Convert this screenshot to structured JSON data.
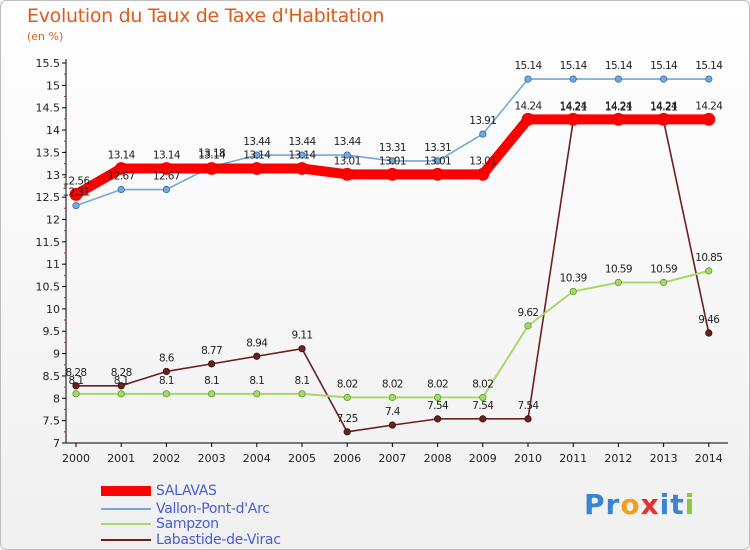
{
  "chart_data": {
    "type": "line",
    "title": "Evolution du Taux de Taxe d'Habitation",
    "unit_label": "(en %)",
    "x": [
      "2000",
      "2001",
      "2002",
      "2003",
      "2004",
      "2005",
      "2006",
      "2007",
      "2008",
      "2009",
      "2010",
      "2011",
      "2012",
      "2013",
      "2014"
    ],
    "ylim": [
      7,
      15.5
    ],
    "yticks": [
      "7",
      "7.5",
      "8",
      "8.5",
      "9",
      "9.5",
      "10",
      "10.5",
      "11",
      "11.5",
      "12",
      "12.5",
      "13",
      "13.5",
      "14",
      "14.5",
      "15",
      "15.5"
    ],
    "grid": false,
    "legend_placement": "bottom-left",
    "series": [
      {
        "name": "SALAVAS",
        "color": "#ff0000",
        "values": [
          12.56,
          13.14,
          13.14,
          13.14,
          13.14,
          13.14,
          13.01,
          13.01,
          13.01,
          13.01,
          14.24,
          14.24,
          14.24,
          14.24,
          14.24
        ],
        "labels": [
          "12.56",
          "13.14",
          "13.14",
          "13.14",
          "13.14",
          "13.14",
          "13.01",
          "13.01",
          "13.01",
          "13.01",
          "14.24",
          "14.24",
          "14.24",
          "14.24",
          "14.24"
        ]
      },
      {
        "name": "Vallon-Pont-d'Arc",
        "color": "#74a8d8",
        "values": [
          12.31,
          12.67,
          12.67,
          13.18,
          13.44,
          13.44,
          13.44,
          13.31,
          13.31,
          13.91,
          15.14,
          15.14,
          15.14,
          15.14,
          15.14
        ],
        "labels": [
          "12.31",
          "12.67",
          "12.67",
          "13.18",
          "13.44",
          "13.44",
          "13.44",
          "13.31",
          "13.31",
          "13.91",
          "15.14",
          "15.14",
          "15.14",
          "15.14",
          "15.14"
        ]
      },
      {
        "name": "Sampzon",
        "color": "#a6d96a",
        "values": [
          8.1,
          8.1,
          8.1,
          8.1,
          8.1,
          8.1,
          8.02,
          8.02,
          8.02,
          8.02,
          9.62,
          10.39,
          10.59,
          10.59,
          10.85
        ],
        "labels": [
          "8.1",
          "8.1",
          "8.1",
          "8.1",
          "8.1",
          "8.1",
          "8.02",
          "8.02",
          "8.02",
          "8.02",
          "9.62",
          "10.39",
          "10.59",
          "10.59",
          "10.85"
        ]
      },
      {
        "name": "Labastide-de-Virac",
        "color": "#6b2020",
        "values": [
          8.28,
          8.28,
          8.6,
          8.77,
          8.94,
          9.11,
          7.25,
          7.4,
          7.54,
          7.54,
          7.54,
          14.21,
          14.21,
          14.21,
          9.46
        ],
        "labels": [
          "8.28",
          "8.28",
          "8.6",
          "8.77",
          "8.94",
          "9.11",
          "7.25",
          "7.4",
          "7.54",
          "7.54",
          "7.54",
          "14.21",
          "14.21",
          "14.21",
          "9.46"
        ]
      }
    ]
  },
  "brand": {
    "letters": [
      "P",
      "r",
      "o",
      "x",
      "i",
      "t",
      "i"
    ],
    "colors": [
      "#3a84d6",
      "#3a84d6",
      "#f0a020",
      "#e03030",
      "#3a84d6",
      "#3a84d6",
      "#8cc63f"
    ]
  }
}
